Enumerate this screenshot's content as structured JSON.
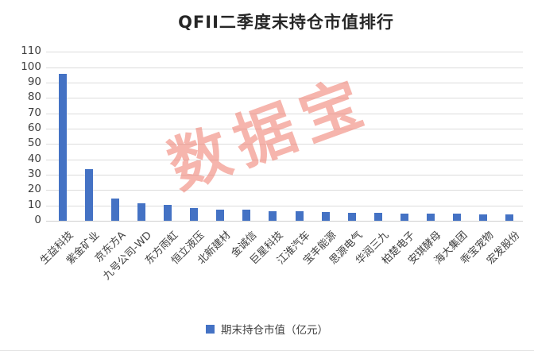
{
  "title": "QFII二季度末持仓市值排行",
  "watermark": "数据宝",
  "legend": {
    "label": "期末持仓市值（亿元）"
  },
  "colors": {
    "bar": "#4472C4",
    "gridline": "#DCDCDC",
    "axis_text": "#404040",
    "title_text": "#262626",
    "watermark": "#EE786A",
    "background": "#FFFFFF"
  },
  "chart_data": {
    "type": "bar",
    "title": "QFII二季度末持仓市值排行",
    "series_name": "期末持仓市值（亿元）",
    "categories": [
      "生益科技",
      "紫金矿业",
      "京东方A",
      "九号公司-WD",
      "东方雨虹",
      "恒立液压",
      "北新建材",
      "金诚信",
      "巨星科技",
      "江淮汽车",
      "宝丰能源",
      "思源电气",
      "华润三九",
      "柏楚电子",
      "安琪酵母",
      "海大集团",
      "乖宝宠物",
      "宏发股份"
    ],
    "values": [
      95.9,
      33.6,
      14.4,
      11.6,
      10.1,
      8.3,
      7.2,
      7.0,
      6.4,
      6.1,
      5.5,
      5.3,
      5.0,
      4.8,
      4.6,
      4.5,
      4.3,
      4.2
    ],
    "xlabel": "",
    "ylabel": "",
    "ylim": [
      0,
      110
    ],
    "yticks": [
      0,
      10,
      20,
      30,
      40,
      50,
      60,
      70,
      80,
      90,
      100,
      110
    ],
    "grid": true,
    "legend_position": "bottom",
    "watermark_text": "数据宝"
  }
}
